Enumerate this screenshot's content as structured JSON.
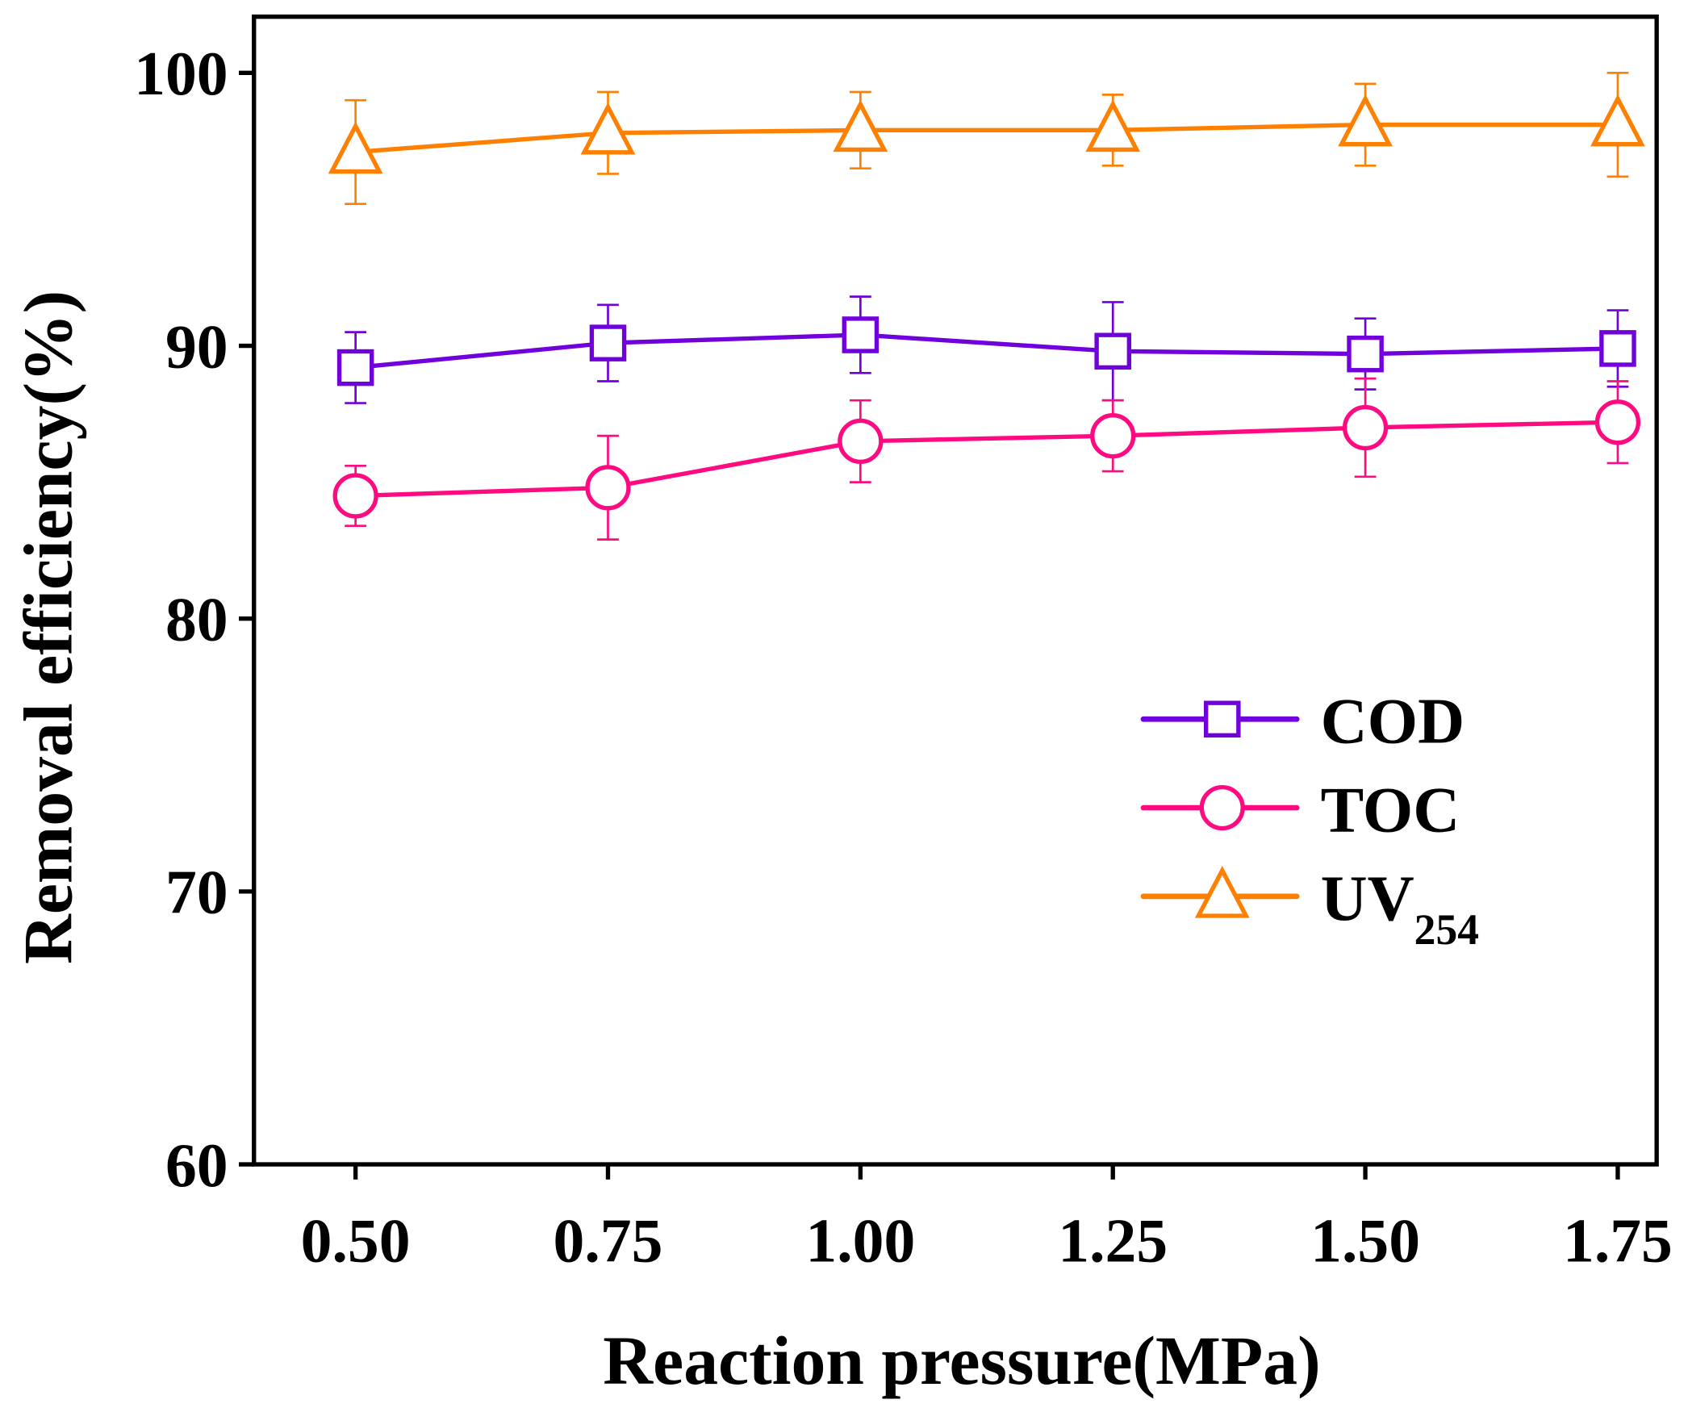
{
  "chart_data": {
    "type": "line",
    "title": "",
    "xlabel": "Reaction pressure(MPa)",
    "ylabel": "Removal efficiency(%)",
    "x": [
      0.5,
      0.75,
      1.0,
      1.25,
      1.5,
      1.75
    ],
    "x_tick_labels": [
      "0.50",
      "0.75",
      "1.00",
      "1.25",
      "1.50",
      "1.75"
    ],
    "y_ticks": [
      60,
      70,
      80,
      90,
      100
    ],
    "y_tick_labels": [
      "60",
      "70",
      "80",
      "90",
      "100"
    ],
    "xlim": [
      0.3,
      1.9
    ],
    "ylim": [
      60,
      102
    ],
    "grid": false,
    "legend_position": "center-right",
    "series": [
      {
        "name": "COD",
        "label_main": "COD",
        "label_sub": "",
        "marker": "square",
        "color": "#7000DC",
        "values": [
          89.2,
          90.1,
          90.4,
          89.8,
          89.7,
          89.9
        ],
        "errors": [
          1.3,
          1.4,
          1.4,
          1.8,
          1.3,
          1.4
        ]
      },
      {
        "name": "TOC",
        "label_main": "TOC",
        "label_sub": "",
        "marker": "circle",
        "color": "#FF0A80",
        "values": [
          84.5,
          84.8,
          86.5,
          86.7,
          87.0,
          87.2
        ],
        "errors": [
          1.1,
          1.9,
          1.5,
          1.3,
          1.8,
          1.5
        ]
      },
      {
        "name": "UV254",
        "label_main": "UV",
        "label_sub": "254",
        "marker": "triangle",
        "color": "#FF8000",
        "values": [
          97.1,
          97.8,
          97.9,
          97.9,
          98.1,
          98.1
        ],
        "errors": [
          1.9,
          1.5,
          1.4,
          1.3,
          1.5,
          1.9
        ]
      }
    ]
  }
}
